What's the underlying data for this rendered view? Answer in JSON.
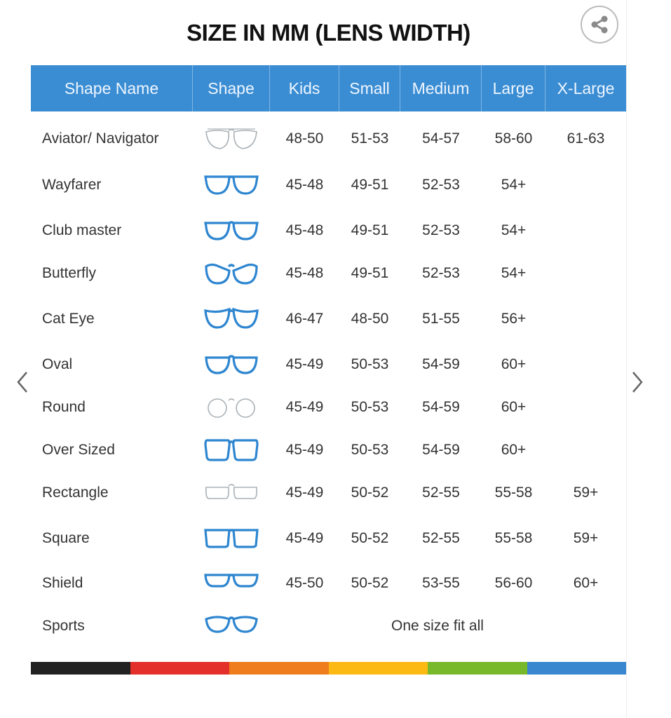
{
  "title": "SIZE IN MM (LENS WIDTH)",
  "share_icon": "share-icon",
  "nav": {
    "prev_icon": "chevron-left-icon",
    "next_icon": "chevron-right-icon"
  },
  "colors": {
    "header": "#3b8dd3",
    "frame_blue": "#2e86d0",
    "frame_gray": "#a9b0b5"
  },
  "headers": [
    "Shape Name",
    "Shape",
    "Kids",
    "Small",
    "Medium",
    "Large",
    "X-Large"
  ],
  "rows": [
    {
      "name": "Aviator/ Navigator",
      "shape": "aviator",
      "sizes": [
        "48-50",
        "51-53",
        "54-57",
        "58-60",
        "61-63"
      ]
    },
    {
      "name": "Wayfarer",
      "shape": "wayfarer",
      "sizes": [
        "45-48",
        "49-51",
        "52-53",
        "54+",
        ""
      ]
    },
    {
      "name": "Club master",
      "shape": "clubmaster",
      "sizes": [
        "45-48",
        "49-51",
        "52-53",
        "54+",
        ""
      ]
    },
    {
      "name": "Butterfly",
      "shape": "butterfly",
      "sizes": [
        "45-48",
        "49-51",
        "52-53",
        "54+",
        ""
      ]
    },
    {
      "name": "Cat Eye",
      "shape": "cateye",
      "sizes": [
        "46-47",
        "48-50",
        "51-55",
        "56+",
        ""
      ]
    },
    {
      "name": "Oval",
      "shape": "oval",
      "sizes": [
        "45-49",
        "50-53",
        "54-59",
        "60+",
        ""
      ]
    },
    {
      "name": "Round",
      "shape": "round",
      "sizes": [
        "45-49",
        "50-53",
        "54-59",
        "60+",
        ""
      ]
    },
    {
      "name": "Over Sized",
      "shape": "oversized",
      "sizes": [
        "45-49",
        "50-53",
        "54-59",
        "60+",
        ""
      ]
    },
    {
      "name": "Rectangle",
      "shape": "rectangle",
      "sizes": [
        "45-49",
        "50-52",
        "52-55",
        "55-58",
        "59+"
      ]
    },
    {
      "name": "Square",
      "shape": "square",
      "sizes": [
        "45-49",
        "50-52",
        "52-55",
        "55-58",
        "59+"
      ]
    },
    {
      "name": "Shield",
      "shape": "shield",
      "sizes": [
        "45-50",
        "50-52",
        "53-55",
        "56-60",
        "60+"
      ]
    },
    {
      "name": "Sports",
      "shape": "sports",
      "merged": "One size fit all"
    }
  ],
  "color_bar": [
    "#222222",
    "#e3302b",
    "#ef7d1d",
    "#fdb913",
    "#78b92b",
    "#3a87cf"
  ]
}
